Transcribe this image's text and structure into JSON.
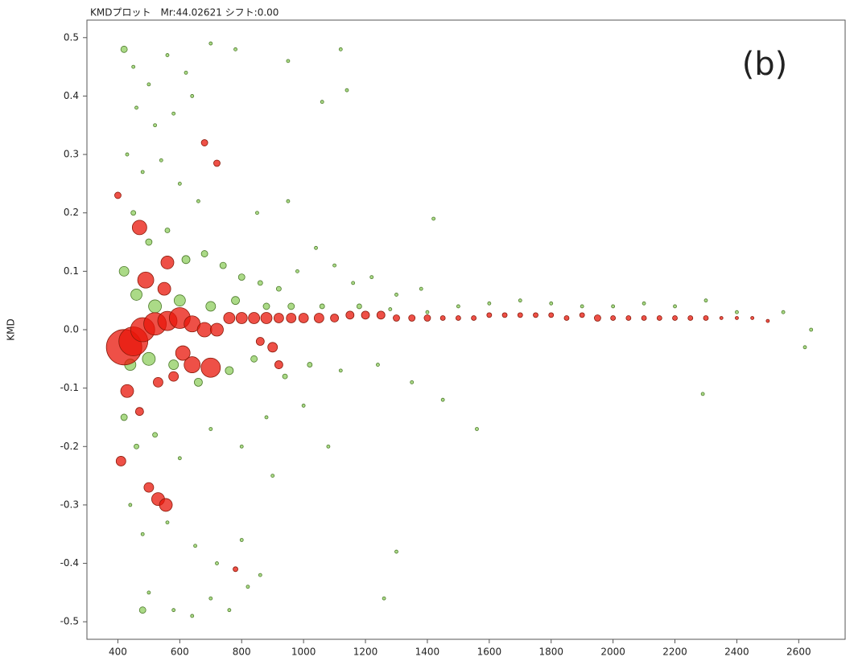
{
  "chart_data": {
    "type": "scatter",
    "title": "KMDプロット　Mr:44.02621 シフト:0.00",
    "y_label": "KMD",
    "annotation": "(b)",
    "xlim": [
      300,
      2750
    ],
    "ylim": [
      -0.53,
      0.53
    ],
    "xticks": [
      400,
      600,
      800,
      1000,
      1200,
      1400,
      1600,
      1800,
      2000,
      2200,
      2400,
      2600
    ],
    "yticks": [
      0.5,
      0.4,
      0.3,
      0.2,
      0.1,
      {
        "value": 0,
        "label": "0.0"
      },
      -0.1,
      -0.2,
      -0.3,
      -0.4,
      -0.5
    ],
    "series": [
      {
        "color": "#8fce5f",
        "stroke": "#4d7a2b",
        "x": [
          420,
          450,
          500,
          560,
          620,
          700,
          780,
          460,
          520,
          580,
          640,
          430,
          480,
          540,
          600,
          660,
          450,
          500,
          560,
          620,
          680,
          740,
          800,
          860,
          920,
          980,
          1040,
          1100,
          1160,
          1220,
          1300,
          1380,
          1420,
          850,
          950,
          420,
          460,
          520,
          600,
          700,
          780,
          880,
          960,
          1060,
          1180,
          1280,
          1400,
          1500,
          1600,
          1700,
          1800,
          1900,
          2000,
          2100,
          2200,
          2300,
          2400,
          2550,
          2640,
          2620,
          440,
          500,
          580,
          660,
          760,
          840,
          940,
          1020,
          1120,
          1240,
          1350,
          1450,
          1560,
          1000,
          880,
          420,
          460,
          520,
          600,
          700,
          800,
          900,
          1080,
          1300,
          1260,
          440,
          480,
          560,
          650,
          720,
          800,
          860,
          500,
          580,
          640,
          700,
          760,
          820,
          480,
          2290,
          1140,
          1120,
          950,
          1060
        ],
        "values": [
          0.48,
          0.45,
          0.42,
          0.47,
          0.44,
          0.49,
          0.48,
          0.38,
          0.35,
          0.37,
          0.4,
          0.3,
          0.27,
          0.29,
          0.25,
          0.22,
          0.2,
          0.15,
          0.17,
          0.12,
          0.13,
          0.11,
          0.09,
          0.08,
          0.07,
          0.1,
          0.14,
          0.11,
          0.08,
          0.09,
          0.06,
          0.07,
          0.19,
          0.2,
          0.22,
          0.1,
          0.06,
          0.04,
          0.05,
          0.04,
          0.05,
          0.04,
          0.04,
          0.04,
          0.04,
          0.035,
          0.03,
          0.04,
          0.045,
          0.05,
          0.045,
          0.04,
          0.04,
          0.045,
          0.04,
          0.05,
          0.03,
          0.03,
          0.0,
          -0.03,
          -0.06,
          -0.05,
          -0.06,
          -0.09,
          -0.07,
          -0.05,
          -0.08,
          -0.06,
          -0.07,
          -0.06,
          -0.09,
          -0.12,
          -0.17,
          -0.13,
          -0.15,
          -0.15,
          -0.2,
          -0.18,
          -0.22,
          -0.17,
          -0.2,
          -0.25,
          -0.2,
          -0.38,
          -0.46,
          -0.3,
          -0.35,
          -0.33,
          -0.37,
          -0.4,
          -0.36,
          -0.42,
          -0.45,
          -0.48,
          -0.49,
          -0.46,
          -0.48,
          -0.44,
          -0.48,
          -0.11,
          0.41,
          0.48,
          0.46,
          0.39
        ],
        "sizes": [
          4,
          2,
          2,
          2,
          2,
          2,
          2,
          2,
          2,
          2,
          2,
          2,
          2,
          2,
          2,
          2,
          3,
          4,
          3,
          5,
          4,
          4,
          4,
          3,
          3,
          2,
          2,
          2,
          2,
          2,
          2,
          2,
          2,
          2,
          2,
          6,
          7,
          8,
          7,
          6,
          5,
          4,
          4,
          3,
          3,
          2,
          2,
          2,
          2,
          2,
          2,
          2,
          2,
          2,
          2,
          2,
          2,
          2,
          2,
          2,
          7,
          8,
          6,
          5,
          5,
          4,
          3,
          3,
          2,
          2,
          2,
          2,
          2,
          2,
          2,
          4,
          3,
          3,
          2,
          2,
          2,
          2,
          2,
          2,
          2,
          2,
          2,
          2,
          2,
          2,
          2,
          2,
          2,
          2,
          2,
          2,
          2,
          2,
          4,
          2,
          2,
          2,
          2,
          2
        ]
      },
      {
        "color": "#e8160a",
        "stroke": "#8a1a0a",
        "x": [
          420,
          450,
          480,
          520,
          560,
          600,
          640,
          680,
          720,
          760,
          800,
          840,
          880,
          920,
          960,
          1000,
          1050,
          1100,
          1150,
          1200,
          1250,
          1300,
          1350,
          1400,
          1450,
          1500,
          1550,
          1600,
          1650,
          1700,
          1750,
          1800,
          1850,
          1900,
          1950,
          2000,
          2050,
          2100,
          2150,
          2200,
          2250,
          2300,
          2350,
          2400,
          2450,
          2500,
          470,
          560,
          490,
          550,
          430,
          410,
          500,
          530,
          555,
          640,
          700,
          610,
          680,
          720,
          400,
          470,
          530,
          860,
          900,
          920,
          780,
          580
        ],
        "values": [
          -0.03,
          -0.02,
          0.0,
          0.01,
          0.015,
          0.02,
          0.01,
          0.0,
          0.0,
          0.02,
          0.02,
          0.02,
          0.02,
          0.02,
          0.02,
          0.02,
          0.02,
          0.02,
          0.025,
          0.025,
          0.025,
          0.02,
          0.02,
          0.02,
          0.02,
          0.02,
          0.02,
          0.025,
          0.025,
          0.025,
          0.025,
          0.025,
          0.02,
          0.025,
          0.02,
          0.02,
          0.02,
          0.02,
          0.02,
          0.02,
          0.02,
          0.02,
          0.02,
          0.02,
          0.02,
          0.015,
          0.175,
          0.115,
          0.085,
          0.07,
          -0.105,
          -0.225,
          -0.27,
          -0.29,
          -0.3,
          -0.06,
          -0.065,
          -0.04,
          0.32,
          0.285,
          0.23,
          -0.14,
          -0.09,
          -0.02,
          -0.03,
          -0.06,
          -0.41,
          -0.08
        ],
        "sizes": [
          22,
          18,
          15,
          14,
          12,
          13,
          10,
          9,
          8,
          7,
          7,
          7,
          7,
          6,
          6,
          6,
          6,
          5,
          5,
          5,
          5,
          4,
          4,
          4,
          3,
          3,
          3,
          3,
          3,
          3,
          3,
          3,
          3,
          3,
          4,
          3,
          3,
          3,
          3,
          3,
          3,
          3,
          2,
          2,
          2,
          2,
          9,
          8,
          10,
          8,
          8,
          6,
          6,
          8,
          8,
          10,
          12,
          9,
          4,
          4,
          4,
          5,
          6,
          5,
          6,
          5,
          3,
          6
        ]
      }
    ]
  }
}
